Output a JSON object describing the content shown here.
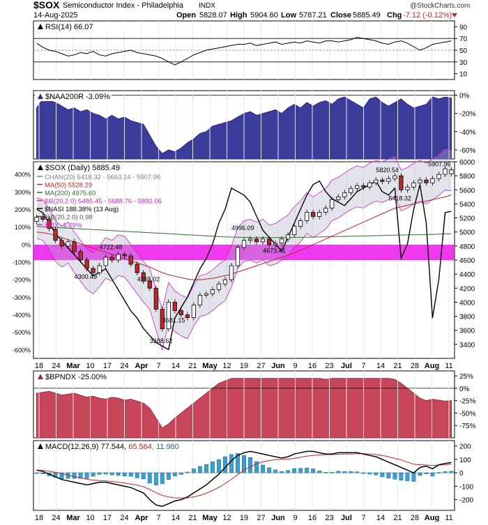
{
  "header": {
    "symbol": "$SOX",
    "name": "Semiconductor Index - Philadelphia",
    "exchange": "INDX",
    "date": "14-Aug-2025",
    "open_label": "Open",
    "open": "5828.07",
    "high_label": "High",
    "high": "5904.60",
    "low_label": "Low",
    "low": "5787.21",
    "close_label": "Close",
    "close": "5885.49",
    "chg_label": "Chg",
    "chg": "-7.12 (-0.12%)",
    "watermark": "@StockCharts.com"
  },
  "x_axis": {
    "labels": [
      "18",
      "24",
      "Mar",
      "10",
      "17",
      "24",
      "Apr",
      "7",
      "14",
      "21",
      "May",
      "12",
      "19",
      "27",
      "Jun",
      "9",
      "16",
      "23",
      "Jul",
      "7",
      "14",
      "21",
      "28",
      "Aug",
      "11"
    ],
    "bold": [
      "Mar",
      "Apr",
      "May",
      "Jun",
      "Jul",
      "Aug"
    ]
  },
  "chart_data": [
    {
      "type": "line",
      "panel": "rsi",
      "title": "RSI(14) 66.07",
      "ylim": [
        0,
        100
      ],
      "ticks": [
        "90",
        "70",
        "50",
        "30",
        "10"
      ],
      "values": [
        62,
        55,
        50,
        48,
        44,
        40,
        42,
        46,
        44,
        48,
        42,
        40,
        44,
        46,
        48,
        50,
        46,
        44,
        42,
        40,
        36,
        30,
        25,
        30,
        36,
        42,
        46,
        50,
        52,
        54,
        56,
        58,
        60,
        60,
        62,
        58,
        60,
        62,
        64,
        60,
        62,
        64,
        62,
        66,
        64,
        62,
        66,
        66,
        64,
        66,
        68,
        72,
        70,
        68,
        66,
        62,
        60,
        64,
        66,
        62,
        56,
        50,
        54,
        60,
        62,
        64,
        66
      ]
    },
    {
      "type": "area",
      "panel": "naa200r",
      "title": "$NAA200R -3.09%",
      "ylim": [
        -70,
        5
      ],
      "ticks": [
        "0%",
        "-20%",
        "-40%",
        "-60%"
      ],
      "values": [
        -14,
        -4,
        -6,
        -8,
        -12,
        -16,
        -14,
        -18,
        -16,
        -20,
        -22,
        -26,
        -22,
        -26,
        -24,
        -28,
        -30,
        -32,
        -44,
        -56,
        -64,
        -60,
        -62,
        -58,
        -52,
        -48,
        -42,
        -40,
        -34,
        -32,
        -30,
        -28,
        -24,
        -20,
        -18,
        -22,
        -20,
        -18,
        -16,
        -20,
        -14,
        -10,
        -14,
        -8,
        -12,
        -8,
        -6,
        -10,
        -4,
        -2,
        -6,
        -10,
        -14,
        -4,
        -2,
        -8,
        -12,
        -8,
        -4,
        -10,
        -14,
        -12,
        -10,
        -2,
        -4,
        -2,
        -3
      ]
    },
    {
      "type": "candlestick",
      "panel": "price",
      "title": "$SOX (Daily) 5885.49",
      "ylim": [
        3200,
        6000
      ],
      "ticks": [
        "6000",
        "5800",
        "5600",
        "5400",
        "5200",
        "5000",
        "4800",
        "4600",
        "4400",
        "4200",
        "4000",
        "3800",
        "3600",
        "3400"
      ],
      "left_ticks": [
        "400%",
        "300%",
        "200%",
        "100%",
        "0%",
        "-100%",
        "-200%",
        "-300%",
        "-400%",
        "-500%",
        "-600%"
      ],
      "legend": [
        {
          "text": "CHAN(20) 5418.32 - 5663.14 - 5907.96",
          "color": "#7a7a9a"
        },
        {
          "text": "MA(50) 5528.29",
          "color": "#c0262e"
        },
        {
          "text": "MA(200) 4975.60",
          "color": "#2e6b2e"
        },
        {
          "text": "BB(20,2.0) 5485.45 - 5688.76 - 5892.06",
          "color": "#d022c8"
        },
        {
          "text": "$NASI 188.38% (13 Aug)",
          "color": "#000000"
        },
        {
          "text": "%B(20,2.0) 0.98",
          "color": "#555555"
        },
        {
          "text": "$VIX -1.79%",
          "color": "#e020e0"
        }
      ],
      "annotations": [
        {
          "text": "5907.96",
          "value": 5907.96,
          "bar": 65
        },
        {
          "text": "5820.54",
          "value": 5820.54,
          "bar": 56
        },
        {
          "text": "5418.32",
          "value": 5418.32,
          "bar": 58
        },
        {
          "text": "4996.09",
          "value": 4996.09,
          "bar": 33
        },
        {
          "text": "4722.48",
          "value": 4722.48,
          "bar": 12
        },
        {
          "text": "4673.41",
          "value": 4673.41,
          "bar": 38
        },
        {
          "text": "4300.49",
          "value": 4300.49,
          "bar": 8
        },
        {
          "text": "4265.02",
          "value": 4265.02,
          "bar": 18
        },
        {
          "text": "3681.15",
          "value": 3681.15,
          "bar": 22
        },
        {
          "text": "3388.62",
          "value": 3388.62,
          "bar": 20
        }
      ],
      "close": [
        5210,
        5180,
        5050,
        4880,
        4800,
        4860,
        4720,
        4600,
        4480,
        4420,
        4520,
        4640,
        4600,
        4680,
        4660,
        4540,
        4420,
        4300,
        4200,
        3900,
        3620,
        4000,
        3880,
        3820,
        3780,
        3960,
        4100,
        4120,
        4180,
        4260,
        4320,
        4520,
        4780,
        4880,
        4900,
        4860,
        4900,
        4820,
        4840,
        4900,
        4960,
        5080,
        5160,
        5280,
        5220,
        5280,
        5340,
        5460,
        5500,
        5560,
        5620,
        5660,
        5640,
        5700,
        5740,
        5720,
        5760,
        5800,
        5600,
        5640,
        5700,
        5740,
        5700,
        5760,
        5820,
        5900,
        5885
      ],
      "open": [
        5150,
        5220,
        5180,
        5040,
        4880,
        4800,
        4860,
        4720,
        4600,
        4480,
        4420,
        4520,
        4640,
        4600,
        4680,
        4660,
        4540,
        4420,
        4300,
        4200,
        3900,
        3620,
        4000,
        3880,
        3820,
        3780,
        3960,
        4100,
        4120,
        4180,
        4260,
        4320,
        4520,
        4780,
        4880,
        4900,
        4860,
        4900,
        4820,
        4840,
        4900,
        4960,
        5080,
        5160,
        5280,
        5220,
        5280,
        5340,
        5460,
        5500,
        5560,
        5620,
        5660,
        5640,
        5700,
        5740,
        5720,
        5760,
        5800,
        5600,
        5640,
        5700,
        5740,
        5700,
        5760,
        5820,
        5828
      ],
      "ma50": [
        5000,
        4990,
        4975,
        4950,
        4920,
        4890,
        4860,
        4830,
        4800,
        4770,
        4740,
        4710,
        4680,
        4650,
        4620,
        4590,
        4560,
        4530,
        4500,
        4460,
        4420,
        4390,
        4370,
        4350,
        4330,
        4320,
        4320,
        4330,
        4340,
        4360,
        4380,
        4400,
        4430,
        4460,
        4490,
        4520,
        4550,
        4580,
        4610,
        4640,
        4670,
        4700,
        4740,
        4780,
        4820,
        4860,
        4900,
        4940,
        4980,
        5020,
        5060,
        5100,
        5140,
        5180,
        5220,
        5260,
        5300,
        5340,
        5360,
        5380,
        5400,
        5420,
        5440,
        5460,
        5480,
        5500,
        5528
      ],
      "ma200": [
        5080,
        5075,
        5070,
        5065,
        5060,
        5055,
        5050,
        5045,
        5040,
        5035,
        5030,
        5025,
        5020,
        5015,
        5010,
        5005,
        5000,
        4995,
        4990,
        4985,
        4980,
        4975,
        4970,
        4965,
        4960,
        4955,
        4950,
        4945,
        4940,
        4935,
        4930,
        4928,
        4926,
        4924,
        4922,
        4920,
        4920,
        4920,
        4920,
        4921,
        4922,
        4923,
        4924,
        4926,
        4928,
        4930,
        4932,
        4934,
        4936,
        4938,
        4940,
        4942,
        4944,
        4946,
        4948,
        4950,
        4952,
        4954,
        4956,
        4958,
        4960,
        4962,
        4964,
        4966,
        4970,
        4972,
        4975.6
      ],
      "vix_band": [
        4600,
        4820
      ],
      "nasi": [
        200,
        180,
        120,
        60,
        20,
        -20,
        -60,
        -100,
        -140,
        -180,
        -160,
        -140,
        -200,
        -260,
        -320,
        -380,
        -420,
        -480,
        -520,
        -560,
        -580,
        -600,
        -420,
        -360,
        -300,
        -220,
        -140,
        -80,
        0,
        120,
        200,
        320,
        300,
        280,
        240,
        160,
        80,
        40,
        0,
        -40,
        40,
        120,
        200,
        280,
        340,
        360,
        300,
        260,
        240,
        220,
        260,
        300,
        320,
        340,
        360,
        300,
        280,
        320,
        -80,
        0,
        200,
        340,
        120,
        -420,
        -200,
        180,
        188
      ]
    },
    {
      "type": "area",
      "panel": "bpndx",
      "title": "$BPNDX -25.00%",
      "ylim": [
        -100,
        35
      ],
      "ticks": [
        "25%",
        "0%",
        "-25%",
        "-50%",
        "-75%"
      ],
      "values": [
        -10,
        -8,
        -6,
        -10,
        -14,
        -12,
        -10,
        -14,
        -18,
        -16,
        -20,
        -22,
        -18,
        -20,
        -24,
        -22,
        -26,
        -30,
        -40,
        -60,
        -80,
        -72,
        -60,
        -50,
        -40,
        -30,
        -20,
        -10,
        0,
        10,
        15,
        20,
        20,
        20,
        20,
        20,
        20,
        20,
        20,
        20,
        20,
        20,
        20,
        20,
        20,
        20,
        18,
        20,
        20,
        20,
        20,
        20,
        20,
        20,
        20,
        20,
        20,
        18,
        10,
        0,
        -10,
        -20,
        -25,
        -22,
        -24,
        -26,
        -25
      ]
    },
    {
      "type": "line",
      "panel": "macd",
      "title": "MACD(12,26,9) 77.544, 65.564, 11.980",
      "title_parts": [
        "MACD(12,26,9) 77.544, ",
        "65.564",
        ", 11.980"
      ],
      "ylim": [
        -280,
        240
      ],
      "ticks": [
        "200",
        "100",
        "0",
        "-100",
        "-200"
      ],
      "macd": [
        20,
        10,
        -10,
        -30,
        -50,
        -60,
        -70,
        -80,
        -90,
        -80,
        -70,
        -70,
        -80,
        -90,
        -100,
        -110,
        -130,
        -150,
        -200,
        -240,
        -250,
        -230,
        -210,
        -200,
        -180,
        -150,
        -120,
        -90,
        -50,
        -10,
        40,
        90,
        130,
        150,
        160,
        150,
        140,
        130,
        120,
        110,
        120,
        140,
        150,
        160,
        160,
        150,
        140,
        140,
        150,
        150,
        150,
        150,
        140,
        130,
        120,
        100,
        80,
        60,
        40,
        20,
        0,
        40,
        50,
        30,
        60,
        70,
        77.5
      ],
      "signal": [
        20,
        18,
        12,
        4,
        -6,
        -18,
        -28,
        -38,
        -48,
        -54,
        -58,
        -60,
        -64,
        -70,
        -76,
        -84,
        -92,
        -104,
        -124,
        -148,
        -168,
        -180,
        -186,
        -188,
        -186,
        -180,
        -168,
        -152,
        -132,
        -108,
        -80,
        -48,
        -14,
        20,
        46,
        66,
        82,
        92,
        98,
        100,
        102,
        108,
        116,
        124,
        130,
        134,
        136,
        136,
        138,
        140,
        140,
        142,
        142,
        140,
        136,
        130,
        120,
        108,
        96,
        80,
        64,
        60,
        58,
        55,
        58,
        60,
        65.6
      ]
    }
  ]
}
